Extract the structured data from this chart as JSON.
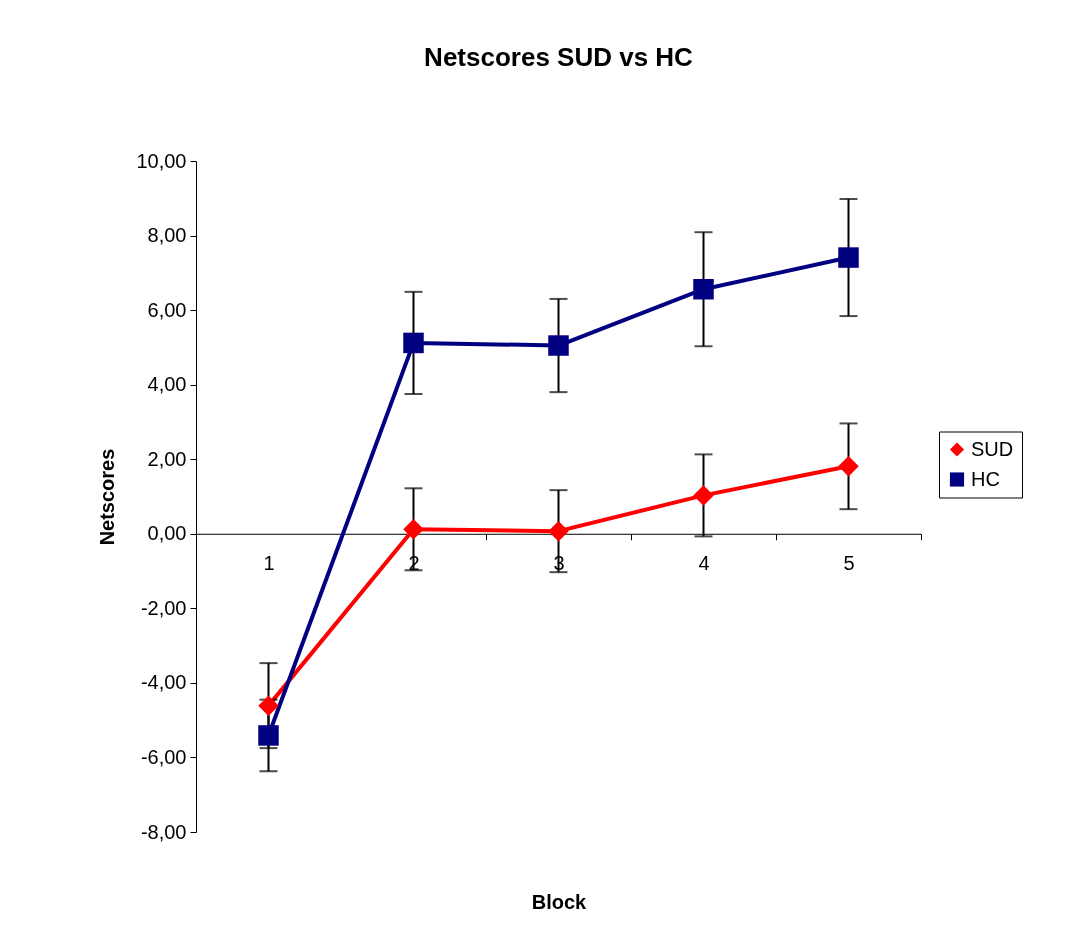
{
  "chart_data": {
    "type": "line",
    "title": "Netscores SUD vs HC",
    "xlabel": "Block",
    "ylabel": "Netscores",
    "categories": [
      "1",
      "2",
      "3",
      "4",
      "5"
    ],
    "series": [
      {
        "name": "SUD",
        "color": "#ff0000",
        "marker": "diamond",
        "values": [
          -4.61,
          0.12,
          0.07,
          1.03,
          1.81
        ],
        "errors": [
          1.14,
          1.1,
          1.1,
          1.1,
          1.15
        ]
      },
      {
        "name": "HC",
        "color": "#000080",
        "marker": "square",
        "values": [
          -5.41,
          5.12,
          5.05,
          6.56,
          7.41
        ],
        "errors": [
          0.96,
          1.37,
          1.25,
          1.53,
          1.57
        ]
      }
    ],
    "ylim": [
      -8,
      10
    ],
    "yticks": [
      {
        "value": -8,
        "label": "-8,00"
      },
      {
        "value": -6,
        "label": "-6,00"
      },
      {
        "value": -4,
        "label": "-4,00"
      },
      {
        "value": -2,
        "label": "-2,00"
      },
      {
        "value": 0,
        "label": "0,00"
      },
      {
        "value": 2,
        "label": "2,00"
      },
      {
        "value": 4,
        "label": "4,00"
      },
      {
        "value": 6,
        "label": "6,00"
      },
      {
        "value": 8,
        "label": "8,00"
      },
      {
        "value": 10,
        "label": "10,00"
      }
    ],
    "grid": false,
    "legend": "right"
  }
}
